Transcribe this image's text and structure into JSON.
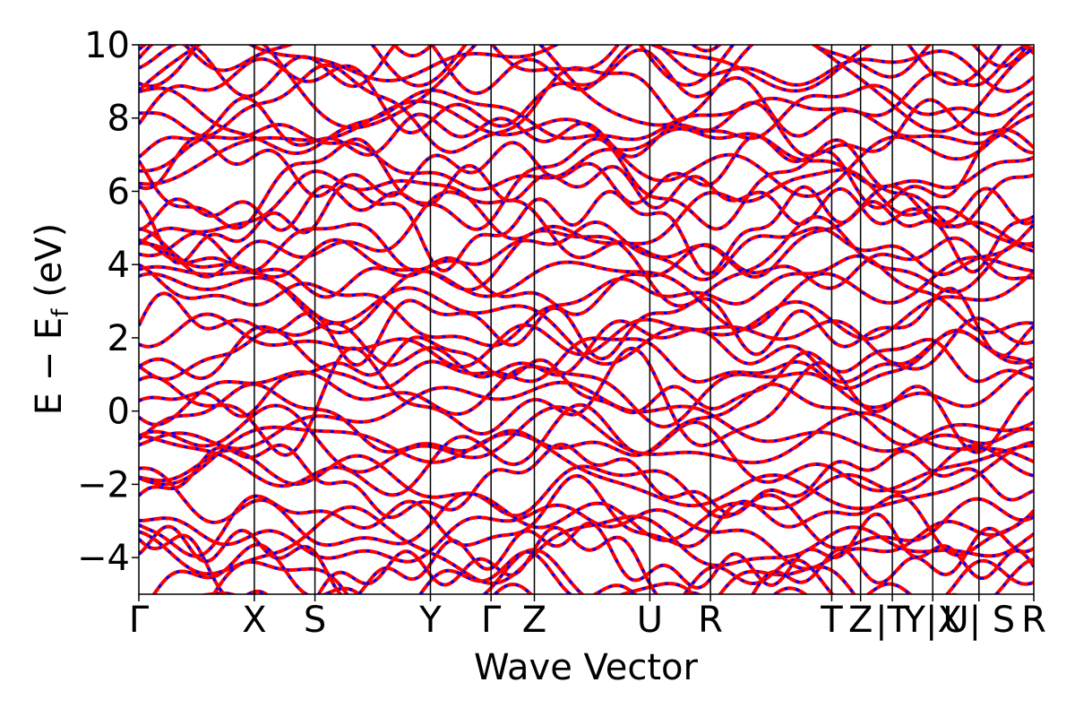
{
  "chart_data": {
    "type": "line",
    "title": "",
    "xlabel": "Wave Vector",
    "ylabel_main": "E − E",
    "ylabel_sub": "f",
    "ylabel_unit": " (eV)",
    "ylim": [
      -5,
      10
    ],
    "y_ticks": [
      -4,
      -2,
      0,
      2,
      4,
      6,
      8,
      10
    ],
    "y_tick_labels": [
      "−4",
      "−2",
      "0",
      "2",
      "4",
      "6",
      "8",
      "10"
    ],
    "xlim": [
      0,
      15.5
    ],
    "k_points": [
      {
        "label": "Γ",
        "x": 0.0
      },
      {
        "label": "X",
        "x": 2.0
      },
      {
        "label": "S",
        "x": 3.05
      },
      {
        "label": "Y",
        "x": 5.05
      },
      {
        "label": "Γ",
        "x": 6.1
      },
      {
        "label": "Z",
        "x": 6.85
      },
      {
        "label": "U",
        "x": 8.85
      },
      {
        "label": "R",
        "x": 9.9
      },
      {
        "label": "T",
        "x": 12.0
      },
      {
        "label": "Z",
        "x": 12.5
      },
      {
        "label": "|T",
        "x": 13.05
      },
      {
        "label": "Y|X",
        "x": 13.75
      },
      {
        "label": "U| S",
        "x": 14.55
      },
      {
        "label": "R",
        "x": 15.5
      }
    ],
    "series": [
      {
        "color": "#ff0000",
        "style": "solid"
      },
      {
        "color": "#0000ff",
        "style": "dotted"
      }
    ],
    "n_bands": 46,
    "grid": false,
    "legend": "none"
  }
}
